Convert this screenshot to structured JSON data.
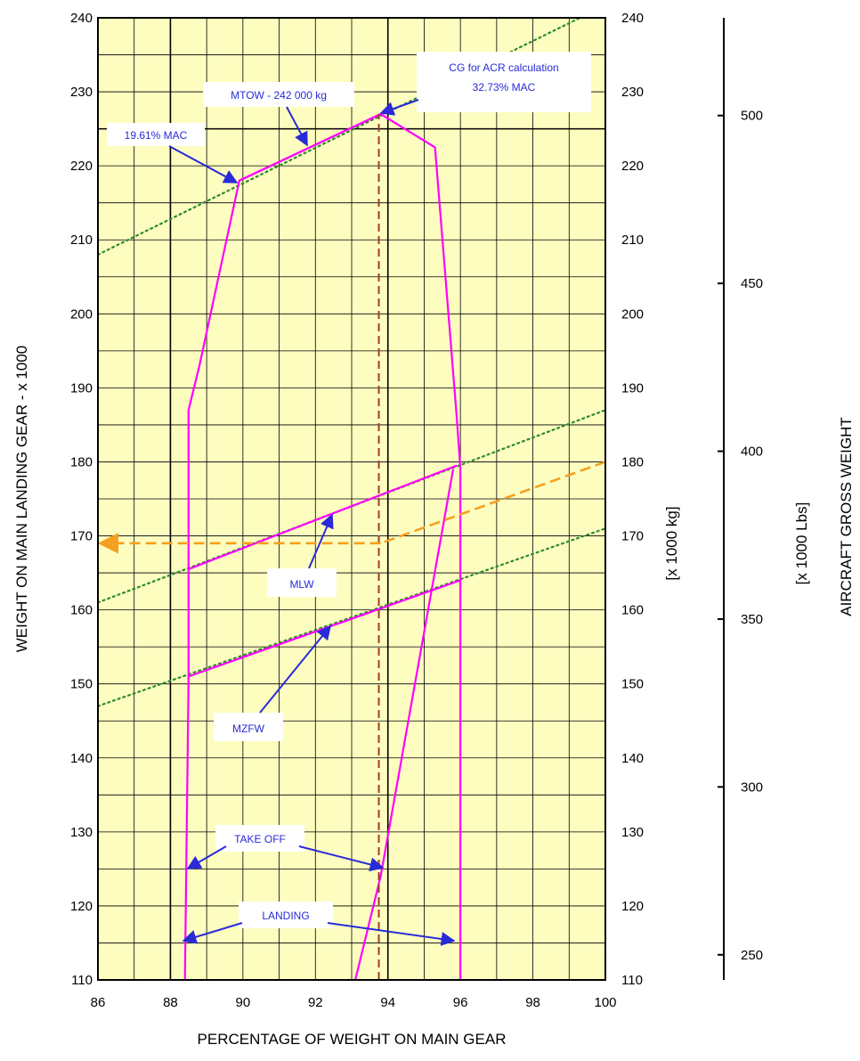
{
  "chart_data": {
    "type": "line",
    "xlabel": "PERCENTAGE OF WEIGHT ON MAIN GEAR",
    "ylabel_left": "WEIGHT ON MAIN LANDING GEAR - x 1000",
    "ylabel_mid": "[x 1000 kg]",
    "ylabel_right_units": "[x 1000 Lbs]",
    "ylabel_right": "AIRCRAFT GROSS WEIGHT",
    "xlim": [
      86,
      100
    ],
    "ylim": [
      110,
      240
    ],
    "x_ticks": [
      86,
      88,
      90,
      92,
      94,
      96,
      98,
      100
    ],
    "y_ticks": [
      110,
      120,
      130,
      140,
      150,
      160,
      170,
      180,
      190,
      200,
      210,
      220,
      230,
      240
    ],
    "lbs_ticks": [
      250,
      300,
      350,
      400,
      450,
      500
    ],
    "grid": true,
    "background": "#fdfdc0",
    "colors": {
      "envelope": "#ff00ff",
      "mac_lines": "#2e8b2e",
      "example": "#f5a020",
      "cg_line": "#a04020",
      "annotation": "#2a2ad8"
    },
    "envelope": {
      "outer": [
        [
          88.4,
          110
        ],
        [
          88.5,
          150.5
        ],
        [
          88.5,
          187
        ],
        [
          88.8,
          193
        ],
        [
          89.9,
          218
        ],
        [
          93.8,
          227
        ],
        [
          95.3,
          222.5
        ],
        [
          95.9,
          186
        ],
        [
          96,
          179
        ],
        [
          96,
          110
        ]
      ],
      "aft_takeoff": [
        [
          93.1,
          110
        ],
        [
          93.8,
          124
        ],
        [
          95.8,
          179
        ]
      ]
    },
    "series": [
      {
        "name": "MTOW - 242 000 kg",
        "x": [
          89.9,
          93.8
        ],
        "y": [
          218,
          227
        ]
      },
      {
        "name": "MLW",
        "x": [
          88.5,
          95.9
        ],
        "y": [
          165.5,
          179.5
        ]
      },
      {
        "name": "MZFW",
        "x": [
          88.5,
          96
        ],
        "y": [
          151,
          164
        ]
      }
    ],
    "mac_lines": [
      {
        "label": "19.61% MAC",
        "x": [
          86,
          99.3
        ],
        "y": [
          208,
          240
        ]
      },
      {
        "label": "",
        "x": [
          86,
          100
        ],
        "y": [
          161,
          187
        ]
      },
      {
        "label": "",
        "x": [
          86,
          100
        ],
        "y": [
          147,
          171
        ]
      }
    ],
    "cg_line": {
      "label": "CG for ACR calculation 32.73% MAC",
      "x": 93.75,
      "y": [
        110,
        227
      ]
    },
    "example_path": {
      "x": [
        100,
        93.8,
        86
      ],
      "y": [
        180,
        169,
        169
      ]
    },
    "annotations": [
      {
        "text": "MTOW - 242 000 kg"
      },
      {
        "text": "19.61% MAC"
      },
      {
        "text": "CG for ACR calculation"
      },
      {
        "text": "32.73% MAC"
      },
      {
        "text": "MLW"
      },
      {
        "text": "MZFW"
      },
      {
        "text": "TAKE OFF"
      },
      {
        "text": "LANDING"
      }
    ]
  }
}
